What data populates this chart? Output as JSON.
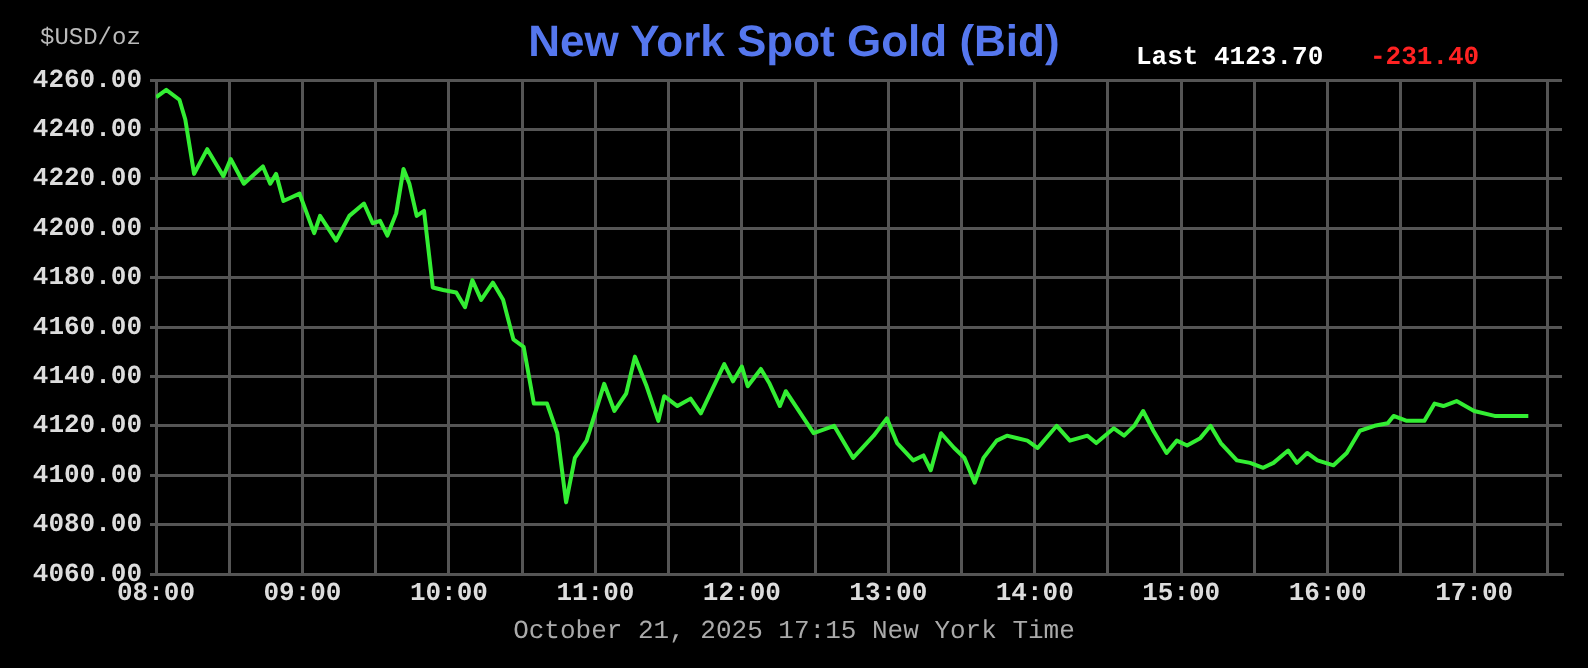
{
  "chart_data": {
    "type": "line",
    "title": "New York Spot Gold (Bid)",
    "ylabel": "$USD/oz",
    "annotations": [
      "Last 4123.70",
      "-231.40",
      "October 21, 2025 17:15 New York Time"
    ],
    "series": [
      {
        "color": "#33ee33",
        "x": [
          8.0,
          8.07,
          8.16,
          8.2,
          8.26,
          8.35,
          8.46,
          8.51,
          8.6,
          8.73,
          8.78,
          8.82,
          8.87,
          8.98,
          9.08,
          9.12,
          9.23,
          9.32,
          9.42,
          9.48,
          9.53,
          9.58,
          9.64,
          9.69,
          9.73,
          9.78,
          9.83,
          9.89,
          9.96,
          10.05,
          10.11,
          10.16,
          10.22,
          10.3,
          10.37,
          10.44,
          10.51,
          10.58,
          10.67,
          10.74,
          10.8,
          10.86,
          10.94,
          11.06,
          11.13,
          11.21,
          11.27,
          11.35,
          11.43,
          11.47,
          11.56,
          11.65,
          11.72,
          11.88,
          11.94,
          12.0,
          12.04,
          12.13,
          12.19,
          12.26,
          12.3,
          12.49,
          12.63,
          12.76,
          12.9,
          12.99,
          13.06,
          13.17,
          13.24,
          13.29,
          13.36,
          13.45,
          13.52,
          13.59,
          13.65,
          13.74,
          13.81,
          13.95,
          14.02,
          14.15,
          14.24,
          14.36,
          14.42,
          14.54,
          14.61,
          14.68,
          14.74,
          14.81,
          14.9,
          14.97,
          15.04,
          15.13,
          15.2,
          15.27,
          15.38,
          15.47,
          15.56,
          15.63,
          15.73,
          15.79,
          15.86,
          15.93,
          16.04,
          16.13,
          16.22,
          16.32,
          16.41,
          16.45,
          16.54,
          16.66,
          16.73,
          16.79,
          16.88,
          17.0,
          17.14,
          17.37
        ],
        "values": [
          4253,
          4256,
          4252,
          4244,
          4222,
          4232,
          4221,
          4228,
          4218,
          4225,
          4218,
          4222,
          4211,
          4214,
          4198,
          4205,
          4195,
          4205,
          4210,
          4202,
          4203,
          4197,
          4206,
          4224,
          4218,
          4205,
          4207,
          4176,
          4175,
          4174,
          4168,
          4179,
          4171,
          4178,
          4171,
          4155,
          4152,
          4129,
          4129,
          4117,
          4089,
          4107,
          4114,
          4137,
          4126,
          4133,
          4148,
          4136,
          4122,
          4132,
          4128,
          4131,
          4125,
          4145,
          4138,
          4144,
          4136,
          4143,
          4137,
          4128,
          4134,
          4117,
          4120,
          4107,
          4116,
          4123,
          4113,
          4106,
          4108,
          4102,
          4117,
          4111,
          4107,
          4097,
          4107,
          4114,
          4116,
          4114,
          4111,
          4120,
          4114,
          4116,
          4113,
          4119,
          4116,
          4120,
          4126,
          4118,
          4109,
          4114,
          4112,
          4115,
          4120,
          4113,
          4106,
          4105,
          4103,
          4105,
          4110,
          4105,
          4109,
          4106,
          4104,
          4109,
          4118,
          4120,
          4121,
          4124,
          4122,
          4122,
          4129,
          4128,
          4130,
          4126,
          4124,
          4124
        ]
      }
    ],
    "xlim": [
      8,
      17.6
    ],
    "xticks": [
      {
        "value": 8,
        "label": "08:00"
      },
      {
        "value": 8.5,
        "label": null
      },
      {
        "value": 9,
        "label": "09:00"
      },
      {
        "value": 9.5,
        "label": null
      },
      {
        "value": 10,
        "label": "10:00"
      },
      {
        "value": 10.5,
        "label": null
      },
      {
        "value": 11,
        "label": "11:00"
      },
      {
        "value": 11.5,
        "label": null
      },
      {
        "value": 12,
        "label": "12:00"
      },
      {
        "value": 12.5,
        "label": null
      },
      {
        "value": 13,
        "label": "13:00"
      },
      {
        "value": 13.5,
        "label": null
      },
      {
        "value": 14,
        "label": "14:00"
      },
      {
        "value": 14.5,
        "label": null
      },
      {
        "value": 15,
        "label": "15:00"
      },
      {
        "value": 15.5,
        "label": null
      },
      {
        "value": 16,
        "label": "16:00"
      },
      {
        "value": 16.5,
        "label": null
      },
      {
        "value": 17,
        "label": "17:00"
      },
      {
        "value": 17.5,
        "label": null
      }
    ],
    "ylim": [
      4060,
      4260
    ],
    "yticks": [
      {
        "value": 4060,
        "label": "4060.00"
      },
      {
        "value": 4080,
        "label": "4080.00"
      },
      {
        "value": 4100,
        "label": "4100.00"
      },
      {
        "value": 4120,
        "label": "4120.00"
      },
      {
        "value": 4140,
        "label": "4140.00"
      },
      {
        "value": 4160,
        "label": "4160.00"
      },
      {
        "value": 4180,
        "label": "4180.00"
      },
      {
        "value": 4200,
        "label": "4200.00"
      },
      {
        "value": 4220,
        "label": "4220.00"
      },
      {
        "value": 4240,
        "label": "4240.00"
      },
      {
        "value": 4260,
        "label": "4260.00"
      }
    ],
    "grid": true,
    "legend": false,
    "marker": "none",
    "line_style": "solid"
  }
}
